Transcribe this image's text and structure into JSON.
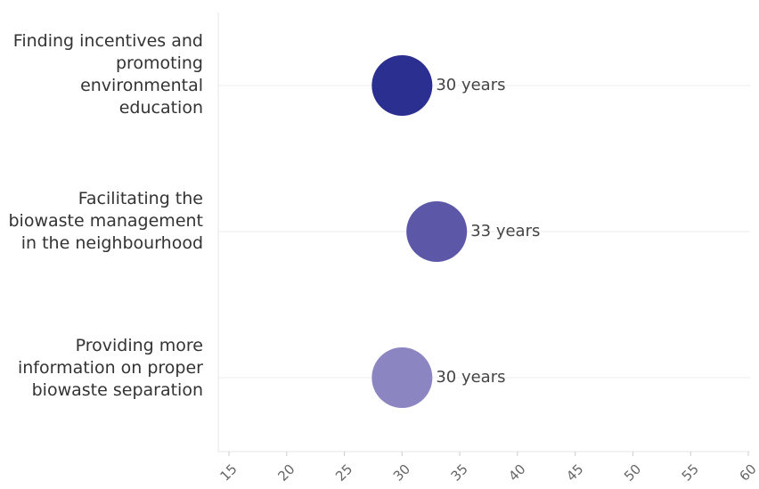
{
  "chart_data": {
    "type": "scatter",
    "title": "",
    "xlabel": "",
    "ylabel": "",
    "xlim": [
      15,
      60
    ],
    "xticks": [
      "15",
      "20",
      "25",
      "30",
      "35",
      "40",
      "45",
      "50",
      "55",
      "60"
    ],
    "categories": [
      "Finding incentives and promoting environmental education",
      "Facilitating the biowaste management in the neighbourhood",
      "Providing more information on proper biowaste separation"
    ],
    "points": [
      {
        "category": "Finding incentives and promoting environmental education",
        "value": 30,
        "label": "30 years",
        "color": "#2b2f8f"
      },
      {
        "category": "Facilitating the biowaste management in the neighbourhood",
        "value": 33,
        "label": "33 years",
        "color": "#5d57a8"
      },
      {
        "category": "Providing more information on proper biowaste separation",
        "value": 30,
        "label": "30 years",
        "color": "#8b86c2"
      }
    ],
    "grid": true,
    "legend": "none"
  }
}
